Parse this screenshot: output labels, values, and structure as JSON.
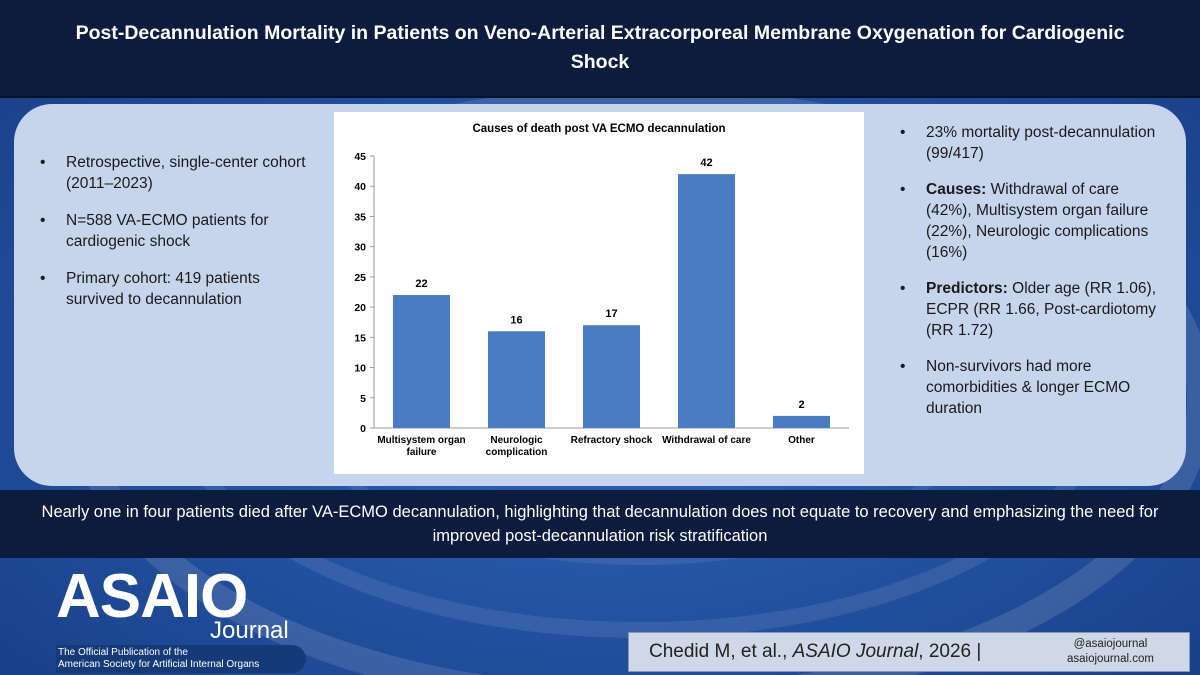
{
  "header": {
    "title": "Post-Decannulation Mortality in Patients on Veno-Arterial Extracorporeal Membrane Oxygenation for Cardiogenic Shock"
  },
  "left_bullets": [
    "Retrospective, single-center cohort (2011–2023)",
    "N=588 VA-ECMO patients for cardiogenic shock",
    "Primary cohort: 419 patients survived to decannulation"
  ],
  "right_bullets": [
    {
      "bold": "",
      "text": "23% mortality post-decannulation (99/417)"
    },
    {
      "bold": "Causes:",
      "text": " Withdrawal of care (42%), Multisystem organ failure (22%), Neurologic complications (16%)"
    },
    {
      "bold": "Predictors:",
      "text": " Older age (RR 1.06), ECPR (RR 1.66, Post-cardiotomy (RR 1.72)"
    },
    {
      "bold": "",
      "text": "Non-survivors had more comorbidities & longer ECMO duration"
    }
  ],
  "bullet_glyph": "•",
  "chart_data": {
    "type": "bar",
    "title": "Causes of death post VA ECMO decannulation",
    "categories": [
      [
        "Multisystem organ",
        "failure"
      ],
      [
        "Neurologic",
        "complication"
      ],
      [
        "Refractory shock"
      ],
      [
        "Withdrawal of care"
      ],
      [
        "Other"
      ]
    ],
    "values": [
      22,
      16,
      17,
      42,
      2
    ],
    "ylim": [
      0,
      45
    ],
    "yticks": [
      0,
      5,
      10,
      15,
      20,
      25,
      30,
      35,
      40,
      45
    ],
    "grid": false,
    "data_labels": true,
    "bar_color": "#4a7cc3"
  },
  "banner": {
    "text": "Nearly one in four patients died after VA-ECMO decannulation, highlighting that decannulation does not equate to recovery and emphasizing the need for improved post-decannulation risk stratification"
  },
  "logo": {
    "main": "ASAIO",
    "sub": "Journal",
    "tagline_line1": "The Official Publication of the",
    "tagline_line2": "American Society for Artificial Internal Organs"
  },
  "citation": {
    "authors": "Chedid M, et al., ",
    "journal": "ASAIO Journal",
    "year": ", 2026",
    "separator": " |",
    "handle": "@asaiojournal",
    "site": "asaiojournal.com"
  },
  "colors": {
    "header_bg": "#0c1c3e",
    "page_bg": "#1e4fa3",
    "panel_bg": "#c6d4ec"
  }
}
